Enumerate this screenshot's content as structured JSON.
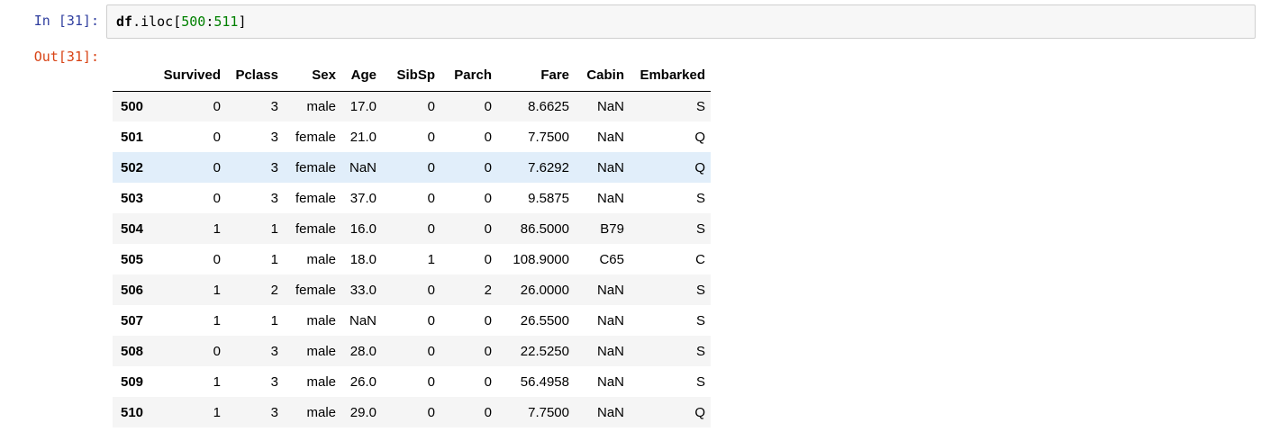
{
  "cell": {
    "in_prompt": "In [31]:",
    "out_prompt": "Out[31]:",
    "code": {
      "object": "df",
      "method": ".iloc",
      "open": "[",
      "start": "500",
      "sep": ":",
      "end": "511",
      "close": "]"
    }
  },
  "table": {
    "columns": [
      "Survived",
      "Pclass",
      "Sex",
      "Age",
      "SibSp",
      "Parch",
      "Fare",
      "Cabin",
      "Embarked"
    ],
    "highlighted_row_index": 2,
    "rows": [
      {
        "index": "500",
        "Survived": "0",
        "Pclass": "3",
        "Sex": "male",
        "Age": "17.0",
        "SibSp": "0",
        "Parch": "0",
        "Fare": "8.6625",
        "Cabin": "NaN",
        "Embarked": "S"
      },
      {
        "index": "501",
        "Survived": "0",
        "Pclass": "3",
        "Sex": "female",
        "Age": "21.0",
        "SibSp": "0",
        "Parch": "0",
        "Fare": "7.7500",
        "Cabin": "NaN",
        "Embarked": "Q"
      },
      {
        "index": "502",
        "Survived": "0",
        "Pclass": "3",
        "Sex": "female",
        "Age": "NaN",
        "SibSp": "0",
        "Parch": "0",
        "Fare": "7.6292",
        "Cabin": "NaN",
        "Embarked": "Q"
      },
      {
        "index": "503",
        "Survived": "0",
        "Pclass": "3",
        "Sex": "female",
        "Age": "37.0",
        "SibSp": "0",
        "Parch": "0",
        "Fare": "9.5875",
        "Cabin": "NaN",
        "Embarked": "S"
      },
      {
        "index": "504",
        "Survived": "1",
        "Pclass": "1",
        "Sex": "female",
        "Age": "16.0",
        "SibSp": "0",
        "Parch": "0",
        "Fare": "86.5000",
        "Cabin": "B79",
        "Embarked": "S"
      },
      {
        "index": "505",
        "Survived": "0",
        "Pclass": "1",
        "Sex": "male",
        "Age": "18.0",
        "SibSp": "1",
        "Parch": "0",
        "Fare": "108.9000",
        "Cabin": "C65",
        "Embarked": "C"
      },
      {
        "index": "506",
        "Survived": "1",
        "Pclass": "2",
        "Sex": "female",
        "Age": "33.0",
        "SibSp": "0",
        "Parch": "2",
        "Fare": "26.0000",
        "Cabin": "NaN",
        "Embarked": "S"
      },
      {
        "index": "507",
        "Survived": "1",
        "Pclass": "1",
        "Sex": "male",
        "Age": "NaN",
        "SibSp": "0",
        "Parch": "0",
        "Fare": "26.5500",
        "Cabin": "NaN",
        "Embarked": "S"
      },
      {
        "index": "508",
        "Survived": "0",
        "Pclass": "3",
        "Sex": "male",
        "Age": "28.0",
        "SibSp": "0",
        "Parch": "0",
        "Fare": "22.5250",
        "Cabin": "NaN",
        "Embarked": "S"
      },
      {
        "index": "509",
        "Survived": "1",
        "Pclass": "3",
        "Sex": "male",
        "Age": "26.0",
        "SibSp": "0",
        "Parch": "0",
        "Fare": "56.4958",
        "Cabin": "NaN",
        "Embarked": "S"
      },
      {
        "index": "510",
        "Survived": "1",
        "Pclass": "3",
        "Sex": "male",
        "Age": "29.0",
        "SibSp": "0",
        "Parch": "0",
        "Fare": "7.7500",
        "Cabin": "NaN",
        "Embarked": "Q"
      }
    ]
  },
  "colors": {
    "in_prompt": "#303f9f",
    "out_prompt": "#d84315",
    "code_number": "#008000",
    "row_highlight": "#e1eefa"
  }
}
